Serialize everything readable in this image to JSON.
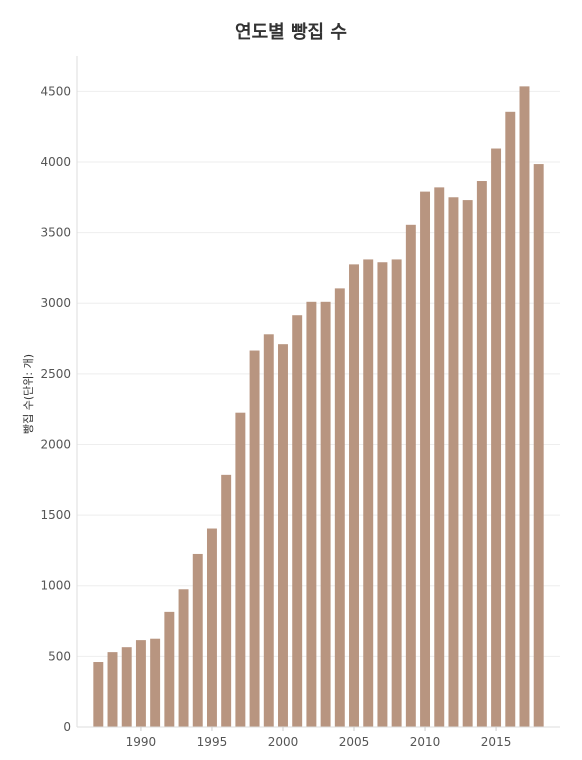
{
  "chart_data": {
    "type": "bar",
    "title": "연도별 빵집 수",
    "xlabel": "",
    "ylabel": "빵집 수(단위: 개)",
    "ylim": [
      0,
      4750
    ],
    "xlim": [
      1985.5,
      2019.5
    ],
    "yticks": [
      0,
      500,
      1000,
      1500,
      2000,
      2500,
      3000,
      3500,
      4000,
      4500
    ],
    "xticks": [
      1990,
      1995,
      2000,
      2005,
      2010,
      2015
    ],
    "grid": true,
    "bar_color": "#b89580",
    "x": [
      1987,
      1988,
      1989,
      1990,
      1991,
      1992,
      1993,
      1994,
      1995,
      1996,
      1997,
      1998,
      1999,
      2000,
      2001,
      2002,
      2003,
      2004,
      2005,
      2006,
      2007,
      2008,
      2009,
      2010,
      2011,
      2012,
      2013,
      2014,
      2015,
      2016,
      2017,
      2018
    ],
    "values": [
      460,
      530,
      565,
      615,
      625,
      815,
      975,
      1225,
      1405,
      1785,
      2225,
      2665,
      2780,
      2710,
      2915,
      3010,
      3010,
      3105,
      3275,
      3310,
      3290,
      3310,
      3555,
      3790,
      3820,
      3750,
      3730,
      3865,
      4095,
      4355,
      4535,
      3985
    ]
  }
}
